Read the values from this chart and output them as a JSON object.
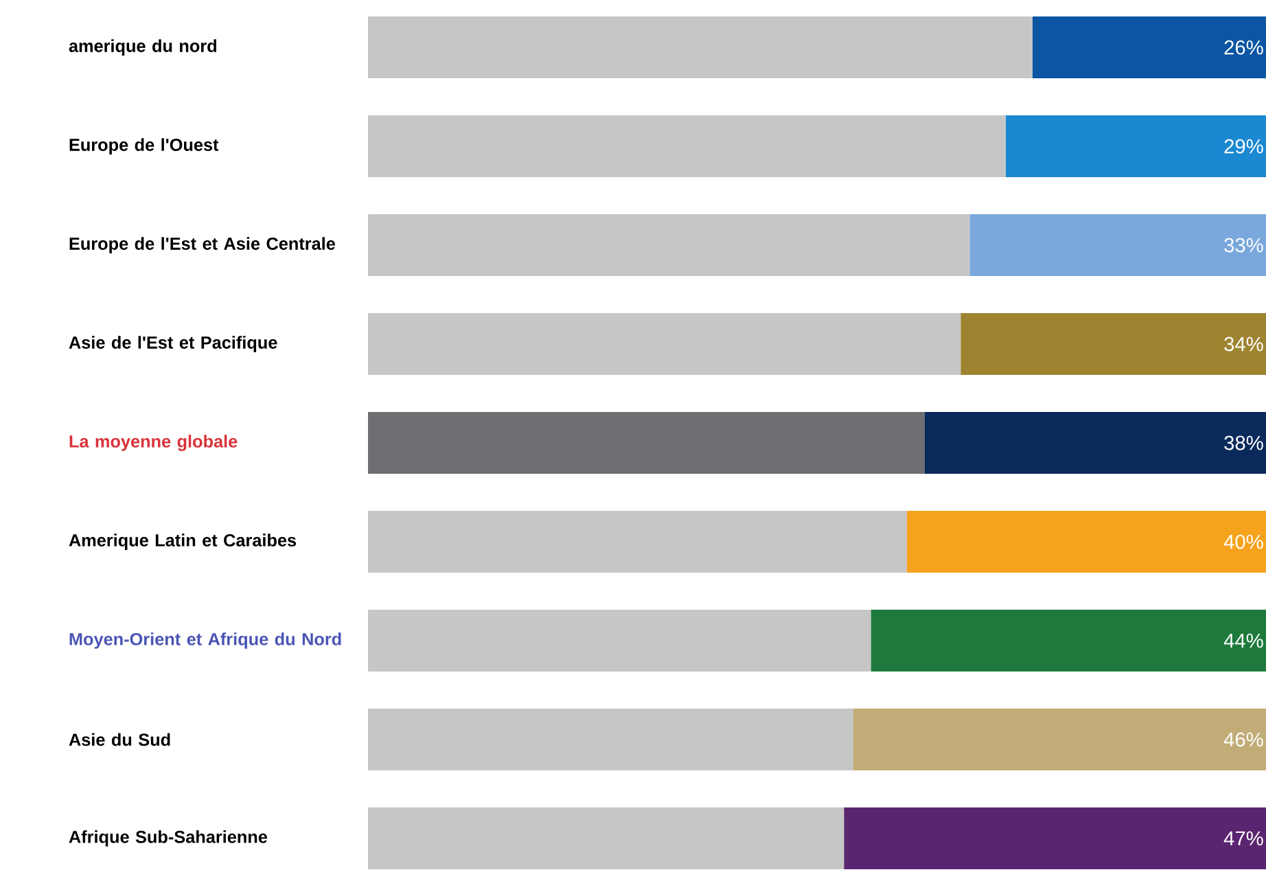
{
  "chart_data": {
    "type": "bar",
    "orientation": "horizontal",
    "stacked": true,
    "categories": [
      "amerique du nord",
      "Europe de l'Ouest",
      "Europe de l'Est et Asie Centrale",
      "Asie de l'Est et Pacifique",
      "La moyenne globale",
      "Amerique Latin et Caraibes",
      "Moyen-Orient et Afrique du Nord",
      "Asie du Sud",
      "Afrique Sub-Saharienne"
    ],
    "series": [
      {
        "colors": [
          "#c6c6c6",
          "#c6c6c6",
          "#c6c6c6",
          "#c6c6c6",
          "#6f6f73",
          "#c6c6c6",
          "#c6c6c6",
          "#c6c6c6",
          "#c6c6c6"
        ],
        "values": [
          74,
          71,
          67,
          66,
          62,
          60,
          56,
          54,
          53
        ]
      },
      {
        "colors": [
          "#0b55a3",
          "#1b88d2",
          "#7aa8dc",
          "#9e8430",
          "#0b2a5c",
          "#f5a21c",
          "#1d7a3c",
          "#c1ac78",
          "#5a2570"
        ],
        "values": [
          26,
          29,
          33,
          34,
          38,
          40,
          44,
          46,
          47
        ],
        "value_labels": [
          "26%",
          "29%",
          "33%",
          "34%",
          "38%",
          "40%",
          "44%",
          "46%",
          "47%"
        ]
      }
    ],
    "xlim": [
      0,
      100
    ]
  }
}
